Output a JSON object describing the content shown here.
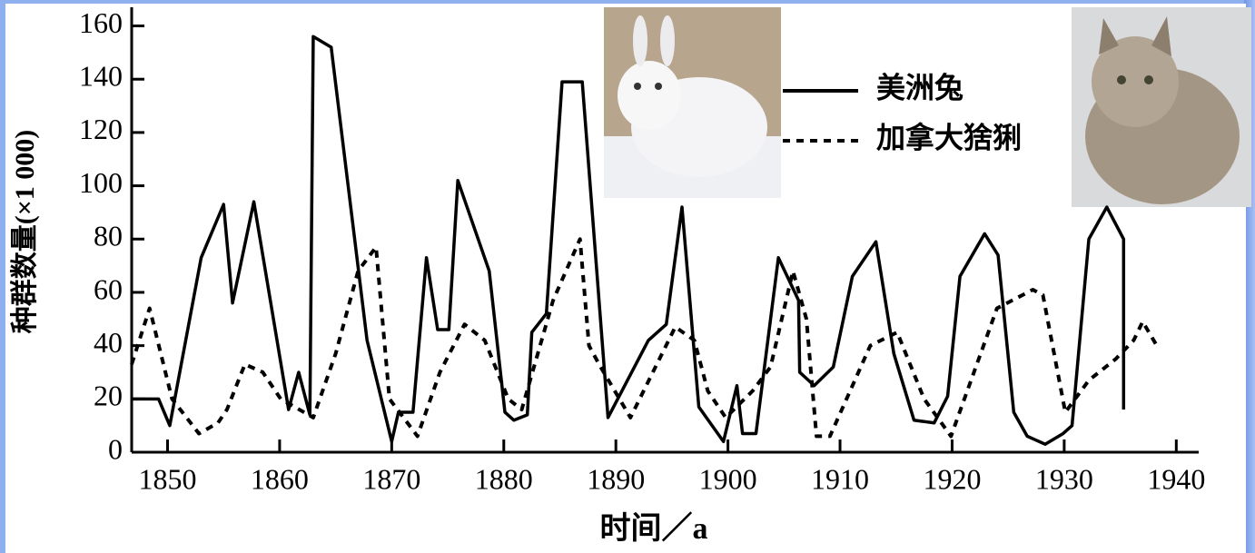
{
  "chart_data": {
    "type": "line",
    "x_label": "时间／a",
    "y_label": "种群数量(×1 000)",
    "xlim": [
      1846.8,
      1942
    ],
    "ylim": [
      0,
      167
    ],
    "xticks": [
      1850,
      1860,
      1870,
      1880,
      1890,
      1900,
      1910,
      1920,
      1930,
      1940
    ],
    "yticks": [
      0,
      20,
      40,
      60,
      80,
      100,
      120,
      140,
      160
    ],
    "legend": "top-right",
    "series": [
      {
        "name": "美洲兔",
        "color": "#000000",
        "style": "solid",
        "x": [
          1846.8,
          1849.2,
          1850.2,
          1853,
          1855,
          1855.8,
          1857.7,
          1860.8,
          1861.7,
          1862.7,
          1863,
          1864.6,
          1867.8,
          1870,
          1870.6,
          1871.9,
          1873.1,
          1874.1,
          1875.1,
          1875.9,
          1878.7,
          1880.1,
          1880.9,
          1882.1,
          1882.5,
          1883.8,
          1885.2,
          1887,
          1889.3,
          1892.9,
          1894.5,
          1895.9,
          1897.4,
          1899.6,
          1900.8,
          1901.3,
          1902.5,
          1904.5,
          1906.3,
          1906.4,
          1907.7,
          1909.4,
          1911.1,
          1913.2,
          1914.8,
          1916.6,
          1918.4,
          1919.6,
          1920.7,
          1922.9,
          1924.1,
          1925.5,
          1926.7,
          1928.3,
          1929.9,
          1930.7,
          1932.2,
          1933.8,
          1935.3,
          1935.3
        ],
        "values": [
          20,
          20,
          10,
          73,
          93,
          56,
          94,
          16,
          30,
          14,
          156,
          152,
          42,
          4,
          15,
          15,
          73,
          46,
          46,
          102,
          68,
          15,
          12,
          14,
          45,
          52,
          139,
          139,
          13,
          42,
          48,
          92,
          17,
          4,
          25,
          7,
          7,
          73,
          57,
          30,
          25,
          32,
          66,
          79,
          37,
          12,
          11,
          21,
          66,
          82,
          74,
          15,
          6,
          3,
          7,
          10,
          80,
          92,
          80,
          16
        ]
      },
      {
        "name": "加拿大猞猁",
        "color": "#000000",
        "style": "dotted",
        "x": [
          1846.8,
          1848.4,
          1850.4,
          1852.8,
          1854.5,
          1855.3,
          1856.9,
          1858.5,
          1860.1,
          1863,
          1865,
          1867,
          1868.6,
          1869.8,
          1872.3,
          1874.3,
          1876.5,
          1878.3,
          1880.4,
          1881.6,
          1884.4,
          1886.8,
          1887.6,
          1888.5,
          1891.3,
          1895.3,
          1897,
          1898.2,
          1899.8,
          1902.2,
          1903.8,
          1905.8,
          1907,
          1907.9,
          1909.1,
          1912.7,
          1915.1,
          1917.5,
          1919.9,
          1924,
          1927.2,
          1928.1,
          1930.1,
          1932.2,
          1934.6,
          1936.2,
          1937,
          1938.4
        ],
        "values": [
          33,
          54,
          20,
          7,
          11,
          16,
          33,
          30,
          20,
          13,
          37,
          68,
          77,
          20,
          6,
          30,
          48,
          42,
          20,
          16,
          57,
          80,
          40,
          33,
          13,
          47,
          42,
          23,
          13,
          23,
          32,
          68,
          50,
          6,
          6,
          40,
          45,
          20,
          6,
          54,
          61,
          59,
          15,
          27,
          35,
          42,
          49,
          39
        ]
      }
    ]
  }
}
